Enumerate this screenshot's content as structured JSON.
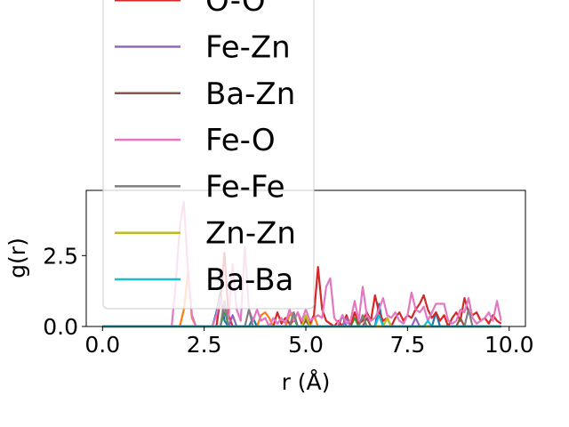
{
  "chart_data": {
    "type": "line",
    "xlabel": "r (Å)",
    "ylabel": "g(r)",
    "xlim": [
      -0.4,
      10.4
    ],
    "ylim": [
      0,
      4.8
    ],
    "x_ticks": [
      0.0,
      2.5,
      5.0,
      7.5,
      10.0
    ],
    "x_tick_labels": [
      "0.0",
      "2.5",
      "5.0",
      "7.5",
      "10.0"
    ],
    "y_ticks": [
      0.0,
      2.5
    ],
    "y_tick_labels": [
      "0.0",
      "2.5"
    ],
    "legend_position": "upper-left, overflowing above plot",
    "series": [
      {
        "name": "",
        "color": "#1f77b4",
        "points": [
          [
            0,
            0
          ],
          [
            2.7,
            0
          ],
          [
            2.8,
            0.5
          ],
          [
            2.9,
            1.2
          ],
          [
            3.0,
            0.2
          ],
          [
            3.1,
            0
          ],
          [
            3.6,
            0
          ],
          [
            3.7,
            0.3
          ],
          [
            3.8,
            0
          ],
          [
            5.8,
            0
          ],
          [
            5.9,
            0.4
          ],
          [
            6.0,
            0
          ],
          [
            6.7,
            0
          ],
          [
            6.8,
            0.8
          ],
          [
            6.9,
            0
          ],
          [
            8.1,
            0
          ],
          [
            8.2,
            0.5
          ],
          [
            8.3,
            0
          ],
          [
            9.8,
            0
          ]
        ]
      },
      {
        "name": "",
        "color": "#ff7f0e",
        "points": [
          [
            0,
            0
          ],
          [
            1.9,
            0
          ],
          [
            2.0,
            0.6
          ],
          [
            2.1,
            1.9
          ],
          [
            2.2,
            0.3
          ],
          [
            2.3,
            0
          ],
          [
            3.8,
            0
          ],
          [
            3.9,
            0.4
          ],
          [
            4.0,
            0.5
          ],
          [
            4.1,
            0.3
          ],
          [
            4.2,
            0
          ],
          [
            4.5,
            0
          ],
          [
            4.6,
            0.4
          ],
          [
            4.7,
            0.5
          ],
          [
            4.8,
            0
          ],
          [
            5.1,
            0
          ],
          [
            5.2,
            0.4
          ],
          [
            5.3,
            0
          ],
          [
            9.8,
            0
          ]
        ]
      },
      {
        "name": "",
        "color": "#2ca02c",
        "points": [
          [
            0,
            0
          ],
          [
            2.9,
            0
          ],
          [
            3.0,
            0.6
          ],
          [
            3.1,
            0
          ],
          [
            4.6,
            0
          ],
          [
            4.7,
            0.3
          ],
          [
            4.8,
            0
          ],
          [
            6.1,
            0
          ],
          [
            6.2,
            0.3
          ],
          [
            6.3,
            0
          ],
          [
            9.8,
            0
          ]
        ]
      },
      {
        "name": "O-O",
        "color": "#d62728",
        "points": [
          [
            0,
            0
          ],
          [
            2.8,
            0
          ],
          [
            2.9,
            1.0
          ],
          [
            3.0,
            2.6
          ],
          [
            3.1,
            0.4
          ],
          [
            3.2,
            0
          ],
          [
            4.2,
            0
          ],
          [
            4.3,
            0.5
          ],
          [
            4.4,
            0.1
          ],
          [
            4.5,
            0.3
          ],
          [
            4.6,
            0.1
          ],
          [
            4.7,
            0.2
          ],
          [
            4.8,
            0.5
          ],
          [
            4.9,
            0.1
          ],
          [
            5.0,
            0.3
          ],
          [
            5.1,
            0.1
          ],
          [
            5.2,
            0.4
          ],
          [
            5.3,
            2.1
          ],
          [
            5.4,
            0.6
          ],
          [
            5.5,
            0.2
          ],
          [
            5.6,
            0.1
          ],
          [
            5.7,
            0
          ],
          [
            5.8,
            0.2
          ],
          [
            5.9,
            0
          ],
          [
            6.0,
            0.4
          ],
          [
            6.1,
            0
          ],
          [
            6.2,
            0.5
          ],
          [
            6.3,
            0.1
          ],
          [
            6.4,
            0.2
          ],
          [
            6.5,
            0.5
          ],
          [
            6.6,
            0.2
          ],
          [
            6.7,
            1.1
          ],
          [
            6.8,
            0.5
          ],
          [
            6.9,
            0.2
          ],
          [
            7.0,
            0.3
          ],
          [
            7.1,
            0
          ],
          [
            7.2,
            0.3
          ],
          [
            7.3,
            0.5
          ],
          [
            7.4,
            0.2
          ],
          [
            7.5,
            0.4
          ],
          [
            7.6,
            0.3
          ],
          [
            7.7,
            0.6
          ],
          [
            7.8,
            0.8
          ],
          [
            7.9,
            1.1
          ],
          [
            8.0,
            0.6
          ],
          [
            8.1,
            0.3
          ],
          [
            8.2,
            0.5
          ],
          [
            8.3,
            0.2
          ],
          [
            8.4,
            0.4
          ],
          [
            8.5,
            0
          ],
          [
            8.6,
            0.3
          ],
          [
            8.7,
            0.5
          ],
          [
            8.8,
            0.2
          ],
          [
            8.9,
            1.0
          ],
          [
            9.0,
            0.5
          ],
          [
            9.1,
            0.4
          ],
          [
            9.2,
            0.5
          ],
          [
            9.3,
            0.2
          ],
          [
            9.4,
            0.3
          ],
          [
            9.5,
            0.1
          ],
          [
            9.6,
            0.4
          ],
          [
            9.7,
            0.2
          ],
          [
            9.8,
            0.1
          ]
        ]
      },
      {
        "name": "Fe-Zn",
        "color": "#9467bd",
        "points": [
          [
            0,
            0
          ],
          [
            3.1,
            0
          ],
          [
            3.2,
            0.4
          ],
          [
            3.3,
            0
          ],
          [
            5.9,
            0
          ],
          [
            6.0,
            0.3
          ],
          [
            6.1,
            0
          ],
          [
            7.6,
            0
          ],
          [
            7.7,
            0.3
          ],
          [
            7.8,
            0
          ],
          [
            9.8,
            0
          ]
        ]
      },
      {
        "name": "Ba-Zn",
        "color": "#8c564b",
        "points": [
          [
            0,
            0
          ],
          [
            4.9,
            0
          ],
          [
            5.0,
            0.2
          ],
          [
            5.1,
            0
          ],
          [
            6.4,
            0
          ],
          [
            6.5,
            0.3
          ],
          [
            6.6,
            0
          ],
          [
            8.7,
            0
          ],
          [
            8.8,
            0.3
          ],
          [
            8.9,
            0
          ],
          [
            9.8,
            0
          ]
        ]
      },
      {
        "name": "Fe-O",
        "color": "#e377c2",
        "points": [
          [
            0,
            0
          ],
          [
            1.7,
            0
          ],
          [
            1.8,
            1.5
          ],
          [
            1.9,
            3.5
          ],
          [
            2.0,
            4.4
          ],
          [
            2.1,
            2.0
          ],
          [
            2.2,
            0.4
          ],
          [
            2.3,
            0
          ],
          [
            2.7,
            0
          ],
          [
            2.8,
            0.4
          ],
          [
            2.9,
            1.0
          ],
          [
            3.0,
            0.6
          ],
          [
            3.1,
            0.3
          ],
          [
            3.2,
            2.2
          ],
          [
            3.3,
            0.6
          ],
          [
            3.4,
            0.2
          ],
          [
            3.5,
            2.8
          ],
          [
            3.6,
            0.6
          ],
          [
            3.7,
            0.2
          ],
          [
            3.8,
            0.6
          ],
          [
            3.9,
            0.2
          ],
          [
            4.0,
            0.3
          ],
          [
            4.1,
            0
          ],
          [
            4.2,
            0.3
          ],
          [
            4.3,
            0.1
          ],
          [
            4.4,
            0.3
          ],
          [
            4.5,
            0.1
          ],
          [
            4.6,
            0.6
          ],
          [
            4.7,
            0.2
          ],
          [
            4.8,
            0.5
          ],
          [
            4.9,
            0.2
          ],
          [
            5.0,
            0.6
          ],
          [
            5.1,
            0.2
          ],
          [
            5.2,
            0.3
          ],
          [
            5.3,
            0.4
          ],
          [
            5.4,
            0.3
          ],
          [
            5.5,
            1.4
          ],
          [
            5.6,
            1.7
          ],
          [
            5.7,
            0.3
          ],
          [
            5.8,
            0.1
          ],
          [
            5.9,
            0.4
          ],
          [
            6.0,
            0.1
          ],
          [
            6.1,
            0.2
          ],
          [
            6.2,
            0.9
          ],
          [
            6.3,
            0.2
          ],
          [
            6.4,
            1.4
          ],
          [
            6.5,
            0.4
          ],
          [
            6.6,
            0.2
          ],
          [
            6.7,
            0.3
          ],
          [
            6.8,
            0.6
          ],
          [
            6.9,
            1.0
          ],
          [
            7.0,
            0.4
          ],
          [
            7.1,
            0.3
          ],
          [
            7.2,
            0.5
          ],
          [
            7.3,
            0.2
          ],
          [
            7.4,
            0.1
          ],
          [
            7.5,
            0.4
          ],
          [
            7.6,
            1.2
          ],
          [
            7.7,
            0.6
          ],
          [
            7.8,
            0.5
          ],
          [
            7.9,
            0.7
          ],
          [
            8.0,
            0.2
          ],
          [
            8.1,
            0.5
          ],
          [
            8.2,
            0.8
          ],
          [
            8.3,
            0.8
          ],
          [
            8.4,
            0.8
          ],
          [
            8.5,
            0.2
          ],
          [
            8.6,
            0.1
          ],
          [
            8.7,
            0.2
          ],
          [
            8.8,
            0.6
          ],
          [
            8.9,
            0.5
          ],
          [
            9.0,
            1.0
          ],
          [
            9.1,
            0.3
          ],
          [
            9.2,
            0.1
          ],
          [
            9.3,
            0.2
          ],
          [
            9.4,
            0.3
          ],
          [
            9.5,
            0.5
          ],
          [
            9.6,
            0.2
          ],
          [
            9.7,
            0.9
          ],
          [
            9.8,
            0.2
          ]
        ]
      },
      {
        "name": "Fe-Fe",
        "color": "#7f7f7f",
        "points": [
          [
            0,
            0
          ],
          [
            2.9,
            0
          ],
          [
            3.0,
            0.9
          ],
          [
            3.1,
            0
          ],
          [
            3.5,
            0
          ],
          [
            3.6,
            0.6
          ],
          [
            3.7,
            0
          ],
          [
            4.6,
            0
          ],
          [
            4.7,
            0.5
          ],
          [
            4.8,
            0
          ],
          [
            6.3,
            0
          ],
          [
            6.4,
            0.4
          ],
          [
            6.5,
            0
          ],
          [
            8.9,
            0
          ],
          [
            9.0,
            0.6
          ],
          [
            9.1,
            0
          ],
          [
            9.8,
            0
          ]
        ]
      },
      {
        "name": "Zn-Zn",
        "color": "#bcbd22",
        "points": [
          [
            0,
            0
          ],
          [
            4.9,
            0
          ],
          [
            5.0,
            0.4
          ],
          [
            5.1,
            0
          ],
          [
            6.9,
            0
          ],
          [
            7.0,
            0.3
          ],
          [
            7.1,
            0
          ],
          [
            9.8,
            0
          ]
        ]
      },
      {
        "name": "Ba-Ba",
        "color": "#17becf",
        "points": [
          [
            0,
            0
          ],
          [
            6.7,
            0
          ],
          [
            6.8,
            0.4
          ],
          [
            6.9,
            0
          ],
          [
            7.9,
            0
          ],
          [
            8.0,
            0.2
          ],
          [
            8.1,
            0
          ],
          [
            9.8,
            0
          ]
        ]
      }
    ]
  }
}
